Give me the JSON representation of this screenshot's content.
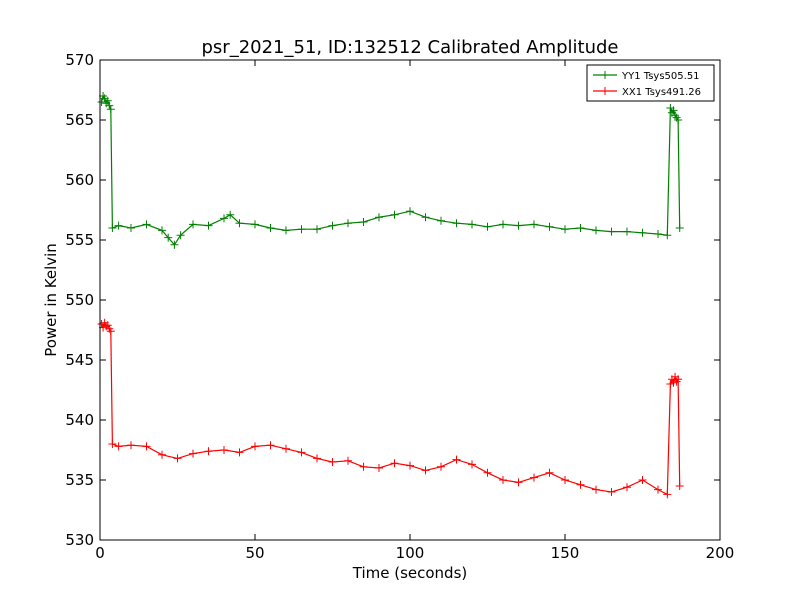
{
  "chart_data": {
    "type": "line",
    "title": "psr_2021_51, ID:132512 Calibrated Amplitude",
    "xlabel": "Time (seconds)",
    "ylabel": "Power in Kelvin",
    "xlim": [
      0,
      200
    ],
    "ylim": [
      530,
      570
    ],
    "xticks": [
      "0",
      "50",
      "100",
      "150",
      "200"
    ],
    "yticks": [
      "530",
      "535",
      "540",
      "545",
      "550",
      "555",
      "560",
      "565",
      "570"
    ],
    "legend_position": "top-right",
    "grid": false,
    "series": [
      {
        "name": "YY1 Tsys505.51",
        "color": "#008000",
        "marker": "+",
        "x": [
          0.5,
          1.0,
          1.5,
          2.0,
          2.5,
          3.0,
          3.5,
          4.0,
          6,
          10,
          15,
          20,
          22,
          24,
          26,
          30,
          35,
          40,
          42,
          45,
          50,
          55,
          60,
          65,
          70,
          75,
          80,
          85,
          90,
          95,
          100,
          105,
          110,
          115,
          120,
          125,
          130,
          135,
          140,
          145,
          150,
          155,
          160,
          165,
          170,
          175,
          180,
          183,
          184,
          184.5,
          185,
          185.5,
          186,
          186.5,
          187
        ],
        "y": [
          566.5,
          567.0,
          566.8,
          566.4,
          566.6,
          566.2,
          565.9,
          556.0,
          556.2,
          556.0,
          556.3,
          555.8,
          555.2,
          554.6,
          555.4,
          556.3,
          556.2,
          556.8,
          557.1,
          556.4,
          556.3,
          556.0,
          555.8,
          555.9,
          555.9,
          556.2,
          556.4,
          556.5,
          556.9,
          557.1,
          557.4,
          556.9,
          556.6,
          556.4,
          556.3,
          556.1,
          556.3,
          556.2,
          556.3,
          556.1,
          555.9,
          556.0,
          555.8,
          555.7,
          555.7,
          555.6,
          555.5,
          555.4,
          566.0,
          565.6,
          565.8,
          565.4,
          565.2,
          565.0,
          556.0
        ]
      },
      {
        "name": "XX1 Tsys491.26",
        "color": "#ff0000",
        "marker": "+",
        "x": [
          0.5,
          1.0,
          1.5,
          2.0,
          2.5,
          3.0,
          3.5,
          4.0,
          6,
          10,
          15,
          20,
          25,
          30,
          35,
          40,
          45,
          50,
          55,
          60,
          65,
          70,
          75,
          80,
          85,
          90,
          95,
          100,
          105,
          110,
          115,
          120,
          125,
          130,
          135,
          140,
          145,
          150,
          155,
          160,
          165,
          170,
          175,
          180,
          183,
          184,
          184.5,
          185,
          185.5,
          186,
          186.5,
          187
        ],
        "y": [
          548.0,
          547.7,
          548.1,
          547.8,
          547.9,
          547.6,
          547.4,
          538.0,
          537.8,
          537.9,
          537.8,
          537.1,
          536.8,
          537.2,
          537.4,
          537.5,
          537.3,
          537.8,
          537.9,
          537.6,
          537.3,
          536.8,
          536.5,
          536.6,
          536.1,
          536.0,
          536.4,
          536.2,
          535.8,
          536.1,
          536.7,
          536.3,
          535.6,
          535.0,
          534.8,
          535.2,
          535.6,
          535.0,
          534.6,
          534.2,
          534.0,
          534.4,
          535.0,
          534.2,
          533.8,
          543.0,
          543.4,
          543.1,
          543.6,
          543.2,
          543.4,
          534.5
        ]
      }
    ]
  }
}
